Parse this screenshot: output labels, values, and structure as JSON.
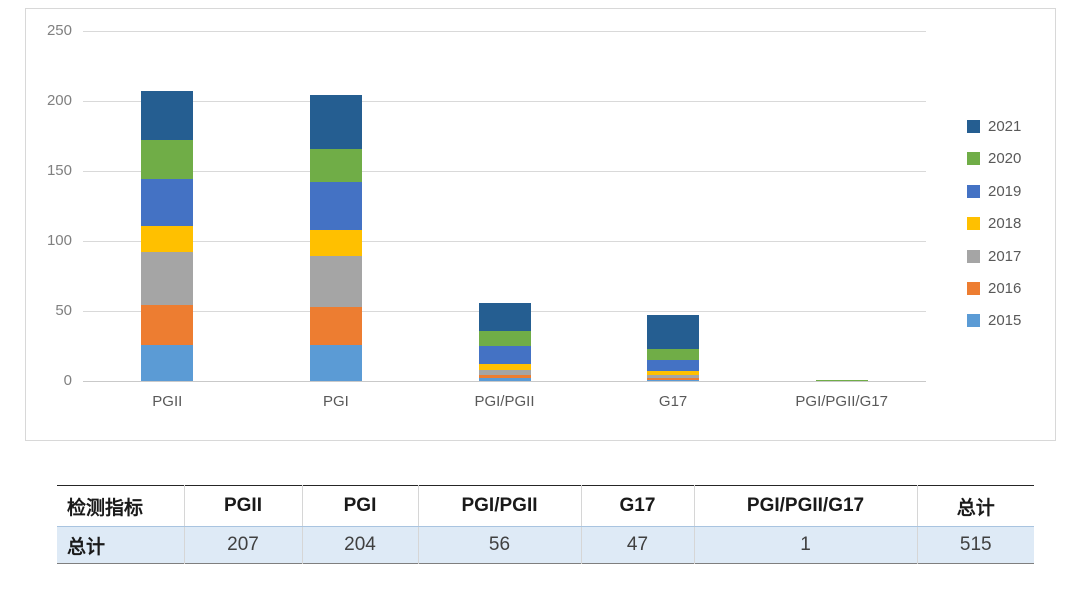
{
  "chart_data": {
    "type": "bar",
    "stacked": true,
    "title": "",
    "xlabel": "",
    "ylabel": "",
    "categories": [
      "PGII",
      "PGI",
      "PGI/PGII",
      "G17",
      "PGI/PGII/G17"
    ],
    "series": [
      {
        "name": "2015",
        "color": "#5B9BD5",
        "values": [
          26,
          26,
          2,
          1,
          0
        ]
      },
      {
        "name": "2016",
        "color": "#ED7D31",
        "values": [
          28,
          27,
          2,
          1,
          0
        ]
      },
      {
        "name": "2017",
        "color": "#A5A5A5",
        "values": [
          38,
          36,
          4,
          2,
          0
        ]
      },
      {
        "name": "2018",
        "color": "#FFC000",
        "values": [
          19,
          19,
          4,
          3,
          0
        ]
      },
      {
        "name": "2019",
        "color": "#4472C4",
        "values": [
          33,
          34,
          13,
          8,
          0
        ]
      },
      {
        "name": "2020",
        "color": "#70AD47",
        "values": [
          28,
          24,
          11,
          8,
          1
        ]
      },
      {
        "name": "2021",
        "color": "#255E91",
        "values": [
          35,
          38,
          20,
          24,
          0
        ]
      }
    ],
    "totals": [
      207,
      204,
      56,
      47,
      1
    ],
    "ylim": [
      0,
      250
    ],
    "ytick_step": 50,
    "y_ticks": [
      0,
      50,
      100,
      150,
      200,
      250
    ],
    "grid": true,
    "legend_position": "right",
    "legend_order_top_to_bottom": [
      "2021",
      "2020",
      "2019",
      "2018",
      "2017",
      "2016",
      "2015"
    ],
    "axis_label_color": "#808080",
    "category_label_color": "#595959",
    "gridline_color": "#D9D9D9"
  },
  "table": {
    "headers": [
      "检测指标",
      "PGII",
      "PGI",
      "PGI/PGII",
      "G17",
      "PGI/PGII/G17",
      "总计"
    ],
    "rows": [
      [
        "总计",
        "207",
        "204",
        "56",
        "47",
        "1",
        "515"
      ]
    ],
    "data_row_bg": "#DEEAF6"
  }
}
